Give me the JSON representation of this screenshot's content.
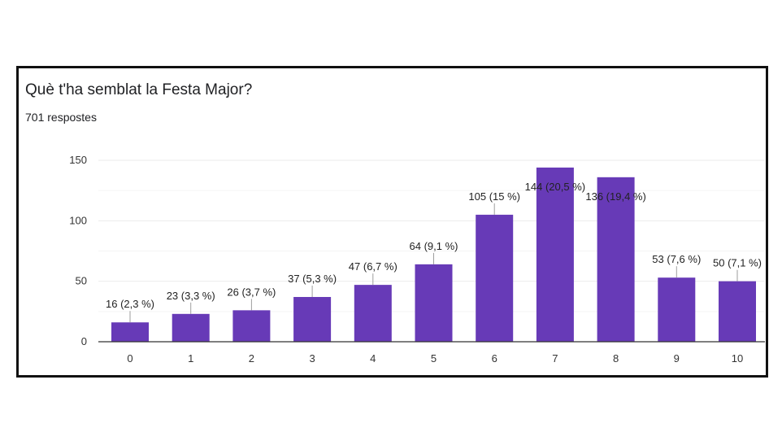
{
  "title": "Què t'ha semblat la Festa Major?",
  "subtitle": "701 respostes",
  "colors": {
    "bar": "#673ab7",
    "grid": "#ebebeb",
    "axis": "#333333",
    "leader": "#9e9e9e"
  },
  "chart_data": {
    "type": "bar",
    "categories": [
      "0",
      "1",
      "2",
      "3",
      "4",
      "5",
      "6",
      "7",
      "8",
      "9",
      "10"
    ],
    "values": [
      16,
      23,
      26,
      37,
      47,
      64,
      105,
      144,
      136,
      53,
      50
    ],
    "data_labels": [
      "16 (2,3 %)",
      "23 (3,3 %)",
      "26 (3,7 %)",
      "37 (5,3 %)",
      "47 (6,7 %)",
      "64 (9,1 %)",
      "105 (15 %)",
      "144 (20,5 %)",
      "136 (19,4 %)",
      "53 (7,6 %)",
      "50 (7,1 %)"
    ],
    "y_ticks": [
      0,
      50,
      100,
      150
    ],
    "ylim": [
      0,
      150
    ],
    "grid": true,
    "legend": "none"
  }
}
